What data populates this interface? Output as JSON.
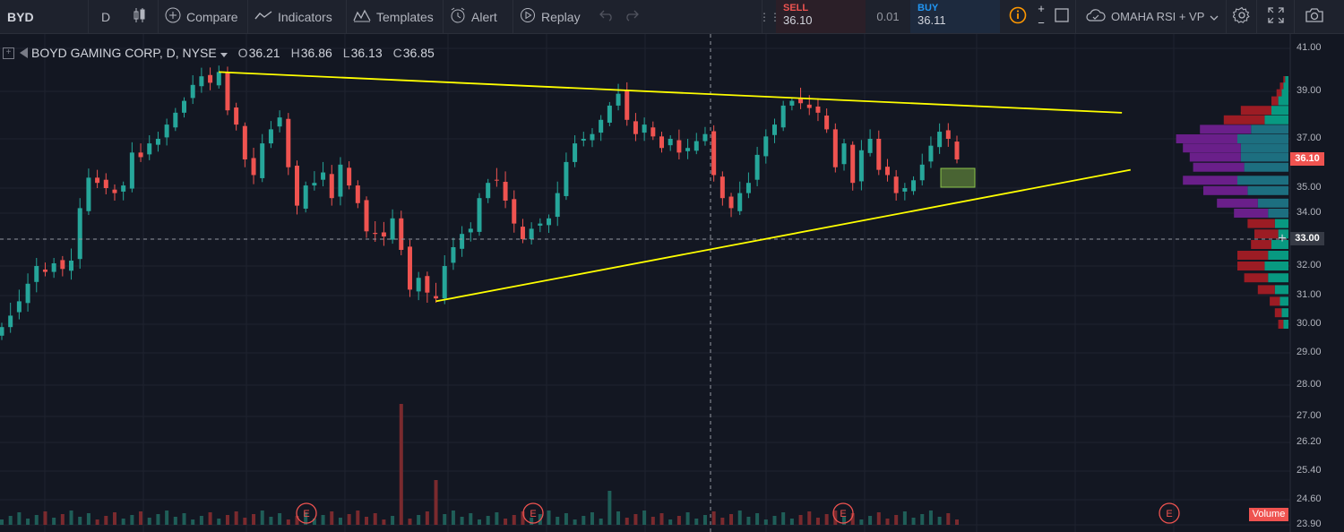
{
  "toolbar": {
    "symbol": "BYD",
    "interval": "D",
    "compare_label": "Compare",
    "indicators_label": "Indicators",
    "templates_label": "Templates",
    "alert_label": "Alert",
    "replay_label": "Replay",
    "layout_label": "OMAHA RSI + VP"
  },
  "trade": {
    "sell_label": "SELL",
    "sell_price": "36.10",
    "spread": "0.01",
    "buy_label": "BUY",
    "buy_price": "36.11"
  },
  "legend": {
    "title": "BOYD GAMING CORP, D, NYSE",
    "open_label": "O",
    "open": "36.21",
    "high_label": "H",
    "high": "36.86",
    "low_label": "L",
    "low": "36.13",
    "close_label": "C",
    "close": "36.85"
  },
  "price_axis": {
    "labels": [
      "41.00",
      "39.00",
      "37.00",
      "36.10",
      "35.00",
      "34.00",
      "33.00",
      "32.00",
      "31.00",
      "30.00",
      "29.00",
      "28.00",
      "27.00",
      "26.20",
      "25.40",
      "24.60",
      "23.90"
    ],
    "current_price": "36.10",
    "crosshair_price": "33.00"
  },
  "volume_label": "Volume",
  "earnings_marker": "E",
  "colors": {
    "background": "#131722",
    "up": "#26a69a",
    "down": "#ef5350",
    "trendline": "#ffff00",
    "vp_up": "#089981",
    "vp_down": "#9c1c24",
    "vp_value_area_up": "#1d6f80",
    "vp_value_area_down": "#6a1f8a"
  },
  "chart_data": {
    "type": "candlestick",
    "symbol": "BYD",
    "exchange": "NYSE",
    "interval": "D",
    "ylim": [
      23.9,
      41.2
    ],
    "close_path": [
      29.9,
      30.3,
      30.8,
      31.4,
      32.0,
      31.8,
      32.1,
      31.9,
      32.2,
      34.2,
      35.4,
      35.2,
      35.0,
      34.8,
      35.1,
      36.4,
      36.2,
      36.8,
      37.0,
      37.6,
      38.1,
      38.6,
      39.3,
      39.7,
      39.4,
      39.9,
      38.2,
      37.6,
      36.1,
      35.5,
      36.8,
      37.4,
      37.9,
      35.8,
      34.3,
      35.1,
      35.2,
      35.6,
      34.6,
      35.9,
      35.1,
      34.4,
      33.3,
      33.2,
      33.1,
      33.8,
      32.6,
      31.2,
      31.6,
      31.1,
      30.9,
      32.0,
      32.7,
      33.2,
      33.4,
      34.6,
      35.2,
      35.3,
      34.5,
      33.6,
      33.0,
      33.4,
      33.6,
      33.8,
      34.8,
      36.0,
      36.8,
      37.0,
      37.2,
      37.8,
      38.4,
      38.9,
      37.8,
      37.2,
      37.6,
      37.1,
      36.6,
      37.0,
      36.4,
      36.6,
      36.9,
      37.2,
      35.5,
      34.6,
      34.2,
      34.8,
      35.2,
      36.3,
      37.1,
      37.6,
      38.4,
      38.6,
      38.5,
      38.3,
      38.1,
      37.4,
      35.8,
      36.8,
      35.2,
      36.5,
      37.0,
      35.7,
      35.5,
      34.8,
      35.0,
      35.3,
      35.9,
      36.7,
      37.3,
      37.0,
      36.1
    ],
    "volume_profile": {
      "price_rows": [
        39.5,
        39.2,
        38.9,
        38.6,
        38.2,
        37.8,
        37.4,
        37.0,
        36.6,
        36.2,
        35.8,
        35.3,
        34.9,
        34.4,
        34.0,
        33.6,
        33.2,
        32.8,
        32.4,
        32.0,
        31.6,
        31.2,
        30.8,
        30.4,
        30.0
      ],
      "up_volume": [
        2,
        3,
        4,
        6,
        10,
        14,
        22,
        30,
        28,
        28,
        26,
        30,
        24,
        18,
        12,
        8,
        6,
        10,
        12,
        14,
        12,
        8,
        5,
        4,
        3
      ],
      "down_volume": [
        1,
        2,
        3,
        4,
        18,
        24,
        30,
        36,
        34,
        30,
        30,
        32,
        26,
        24,
        20,
        16,
        14,
        12,
        18,
        16,
        14,
        10,
        6,
        4,
        3
      ]
    },
    "trendlines": [
      {
        "name": "resistance",
        "from": [
          25,
          39.9
        ],
        "to": [
          129,
          38.1
        ]
      },
      {
        "name": "support",
        "from": [
          50,
          30.8
        ],
        "to": [
          130,
          35.7
        ]
      }
    ],
    "earnings_events": [
      "E",
      "E",
      "E",
      "E"
    ]
  }
}
